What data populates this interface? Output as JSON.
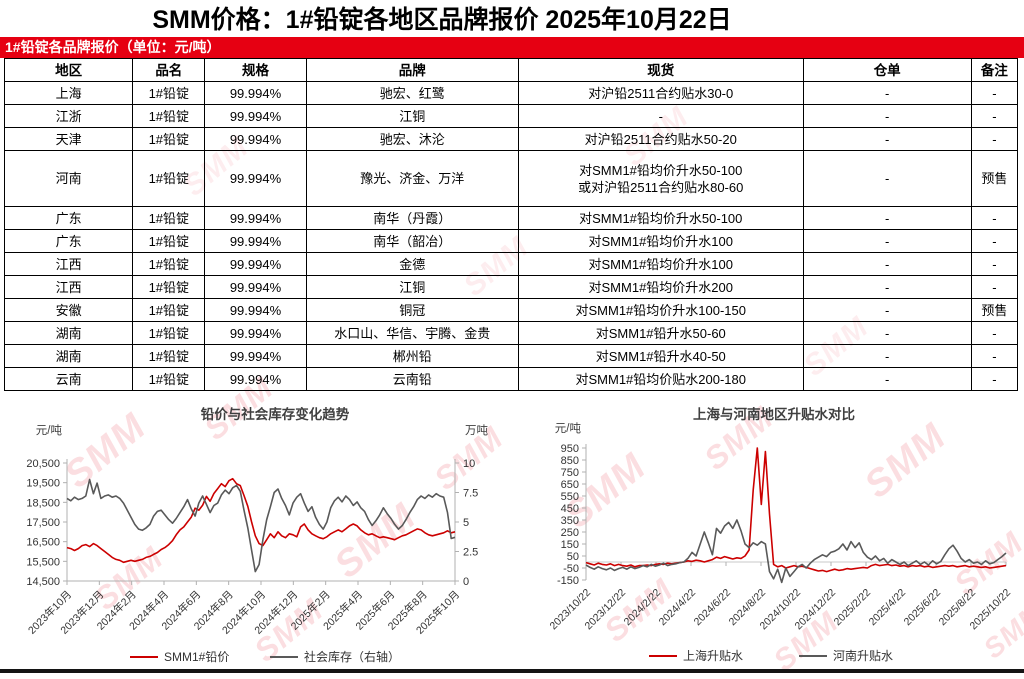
{
  "title": "SMM价格：1#铅锭各地区品牌报价 2025年10月22日",
  "banner": {
    "label": "1#铅锭各品牌报价（单位：元/吨）"
  },
  "watermark": "SMM",
  "colors": {
    "banner_red": "#e60012",
    "series_red": "#cc0000",
    "series_gray": "#595959",
    "watermark_red": "#de0018"
  },
  "table": {
    "headers": [
      "地区",
      "品名",
      "规格",
      "品牌",
      "现货",
      "仓单",
      "备注"
    ],
    "rows": [
      {
        "region": "上海",
        "product": "1#铅锭",
        "spec": "99.994%",
        "brand": "驰宏、红鹭",
        "spot": [
          "对沪铅2511合约贴水30-0"
        ],
        "warrant": "-",
        "note": "-"
      },
      {
        "region": "江浙",
        "product": "1#铅锭",
        "spec": "99.994%",
        "brand": "江铜",
        "spot": [
          "-"
        ],
        "warrant": "-",
        "note": "-"
      },
      {
        "region": "天津",
        "product": "1#铅锭",
        "spec": "99.994%",
        "brand": "驰宏、沐沦",
        "spot": [
          "对沪铅2511合约贴水50-20"
        ],
        "warrant": "-",
        "note": "-"
      },
      {
        "region": "河南",
        "product": "1#铅锭",
        "spec": "99.994%",
        "brand": "豫光、济金、万洋",
        "spot": [
          "对SMM1#铅均价升水50-100",
          "或对沪铅2511合约贴水80-60"
        ],
        "warrant": "-",
        "note": "预售"
      },
      {
        "region": "广东",
        "product": "1#铅锭",
        "spec": "99.994%",
        "brand": "南华（丹霞）",
        "spot": [
          "对SMM1#铅均价升水50-100"
        ],
        "warrant": "-",
        "note": "-"
      },
      {
        "region": "广东",
        "product": "1#铅锭",
        "spec": "99.994%",
        "brand": "南华（韶冶）",
        "spot": [
          "对SMM1#铅均价升水100"
        ],
        "warrant": "-",
        "note": "-"
      },
      {
        "region": "江西",
        "product": "1#铅锭",
        "spec": "99.994%",
        "brand": "金德",
        "spot": [
          "对SMM1#铅均价升水100"
        ],
        "warrant": "-",
        "note": "-"
      },
      {
        "region": "江西",
        "product": "1#铅锭",
        "spec": "99.994%",
        "brand": "江铜",
        "spot": [
          "对SMM1#铅均价升水200"
        ],
        "warrant": "-",
        "note": "-"
      },
      {
        "region": "安徽",
        "product": "1#铅锭",
        "spec": "99.994%",
        "brand": "铜冠",
        "spot": [
          "对SMM1#铅均价升水100-150"
        ],
        "warrant": "-",
        "note": "预售"
      },
      {
        "region": "湖南",
        "product": "1#铅锭",
        "spec": "99.994%",
        "brand": "水口山、华信、宇腾、金贵",
        "spot": [
          "对SMM1#铅升水50-60"
        ],
        "warrant": "-",
        "note": "-"
      },
      {
        "region": "湖南",
        "product": "1#铅锭",
        "spec": "99.994%",
        "brand": "郴州铅",
        "spot": [
          "对SMM1#铅升水40-50"
        ],
        "warrant": "-",
        "note": "-"
      },
      {
        "region": "云南",
        "product": "1#铅锭",
        "spec": "99.994%",
        "brand": "云南铅",
        "spot": [
          "对SMM1#铅均价贴水200-180"
        ],
        "warrant": "-",
        "note": "-"
      }
    ]
  },
  "chart_data": [
    {
      "type": "line",
      "title": "铅价与社会库存变化趋势",
      "left_axis": {
        "unit": "元/吨",
        "min": 14500,
        "max": 20500,
        "ticks": [
          "20,500",
          "19,500",
          "18,500",
          "17,500",
          "16,500",
          "15,500",
          "14,500"
        ]
      },
      "right_axis": {
        "unit": "万吨",
        "min": 0,
        "max": 10,
        "ticks": [
          "10",
          "7.5",
          "5",
          "2.5",
          "0"
        ]
      },
      "x_ticks": [
        "2023年10月",
        "2023年12月",
        "2024年2月",
        "2024年4月",
        "2024年6月",
        "2024年8月",
        "2024年10月",
        "2024年12月",
        "2025年2月",
        "2025年4月",
        "2025年6月",
        "2025年8月",
        "2025年10月"
      ],
      "legend": [
        {
          "name": "SMM1#铅价",
          "color": "#cc0000"
        },
        {
          "name": "社会库存（右轴）",
          "color": "#595959"
        }
      ],
      "series": [
        {
          "name": "SMM1#铅价",
          "axis": "left",
          "color": "#cc0000",
          "values": [
            16200,
            16150,
            16050,
            16150,
            16300,
            16350,
            16250,
            16400,
            16300,
            16150,
            16000,
            15850,
            15700,
            15600,
            15550,
            15450,
            15500,
            15550,
            15500,
            15550,
            15600,
            15700,
            15750,
            15850,
            15950,
            16100,
            16200,
            16350,
            16550,
            16850,
            17100,
            17250,
            17500,
            17750,
            18200,
            18100,
            18350,
            18800,
            18550,
            18950,
            19200,
            19450,
            19300,
            19600,
            19700,
            19450,
            19350,
            18850,
            18300,
            17500,
            16800,
            16400,
            16300,
            16600,
            16900,
            16700,
            17000,
            16800,
            16700,
            16900,
            16850,
            16750,
            17250,
            17400,
            17100,
            16900,
            16800,
            16700,
            16650,
            16750,
            16900,
            17000,
            17100,
            17000,
            17150,
            17300,
            17400,
            17300,
            17100,
            16950,
            16850,
            16900,
            16800,
            16700,
            16750,
            16700,
            16650,
            16600,
            16700,
            16800,
            16850,
            16950,
            17050,
            17150,
            17100,
            16950,
            16850,
            16800,
            16850,
            16900,
            16950,
            17050,
            16950,
            17000
          ]
        },
        {
          "name": "社会库存（右轴）",
          "axis": "right",
          "color": "#595959",
          "values": [
            7.0,
            6.8,
            7.1,
            6.9,
            7.0,
            7.2,
            8.6,
            7.4,
            8.3,
            7.0,
            7.2,
            7.3,
            7.1,
            7.2,
            7.0,
            6.6,
            6.0,
            5.4,
            4.8,
            4.4,
            4.3,
            4.5,
            4.8,
            5.5,
            5.9,
            6.0,
            5.6,
            5.2,
            4.9,
            5.3,
            5.8,
            6.3,
            6.9,
            6.1,
            5.5,
            6.6,
            7.2,
            6.5,
            5.8,
            6.4,
            6.6,
            7.3,
            7.7,
            7.4,
            7.9,
            8.1,
            7.6,
            6.0,
            4.5,
            2.6,
            0.8,
            1.4,
            3.5,
            5.2,
            6.3,
            7.5,
            7.8,
            7.0,
            6.4,
            5.6,
            6.6,
            7.1,
            7.4,
            6.6,
            5.9,
            6.3,
            5.4,
            4.8,
            4.4,
            5.0,
            6.2,
            6.8,
            7.1,
            6.7,
            7.2,
            6.9,
            6.4,
            6.7,
            6.2,
            5.9,
            5.2,
            4.7,
            5.1,
            5.6,
            6.2,
            5.7,
            5.3,
            4.8,
            4.4,
            4.7,
            5.2,
            5.8,
            6.3,
            6.9,
            7.2,
            7.0,
            7.3,
            7.1,
            7.4,
            7.2,
            7.1,
            5.8,
            3.6,
            3.7
          ]
        }
      ]
    },
    {
      "type": "line",
      "title": "上海与河南地区升贴水对比",
      "left_axis": {
        "unit": "元/吨",
        "min": -150,
        "max": 950,
        "ticks": [
          "950",
          "850",
          "750",
          "650",
          "550",
          "450",
          "350",
          "250",
          "150",
          "50",
          "-50",
          "-150"
        ]
      },
      "x_ticks": [
        "2023/10/22",
        "2023/12/22",
        "2024/2/22",
        "2024/4/22",
        "2024/6/22",
        "2024/8/22",
        "2024/10/22",
        "2024/12/22",
        "2025/2/22",
        "2025/4/22",
        "2025/6/22",
        "2025/8/22",
        "2025/10/22"
      ],
      "zero_line": true,
      "legend": [
        {
          "name": "上海升贴水",
          "color": "#cc0000"
        },
        {
          "name": "河南升贴水",
          "color": "#595959"
        }
      ],
      "series": [
        {
          "name": "上海升贴水",
          "axis": "left",
          "color": "#cc0000",
          "values": [
            -5,
            -15,
            -25,
            -10,
            -20,
            -25,
            -15,
            -30,
            -20,
            -30,
            -35,
            -25,
            -40,
            -30,
            -30,
            -25,
            -30,
            -20,
            -15,
            -20,
            -10,
            -15,
            -10,
            -5,
            0,
            10,
            5,
            15,
            10,
            0,
            10,
            20,
            40,
            30,
            45,
            35,
            25,
            35,
            30,
            50,
            100,
            600,
            950,
            480,
            920,
            400,
            -20,
            -40,
            -30,
            -50,
            -40,
            -30,
            -40,
            -35,
            -45,
            -55,
            -65,
            -75,
            -70,
            -80,
            -70,
            -60,
            -70,
            -65,
            -55,
            -60,
            -55,
            -50,
            -45,
            -50,
            -30,
            -20,
            -30,
            -25,
            -20,
            -30,
            -25,
            -35,
            -30,
            -40,
            -30,
            -35,
            -30,
            -40,
            -35,
            -45,
            -40,
            -35,
            -30,
            -35,
            -30,
            -40,
            -35,
            -30,
            -40,
            -35,
            -40,
            -45,
            -40,
            -50,
            -45,
            -40,
            -35,
            -30
          ]
        },
        {
          "name": "河南升贴水",
          "axis": "left",
          "color": "#595959",
          "values": [
            -25,
            -45,
            -60,
            -40,
            -55,
            -65,
            -50,
            -70,
            -55,
            -45,
            -60,
            -40,
            -55,
            -45,
            -30,
            -40,
            -20,
            -35,
            -25,
            -10,
            -30,
            -20,
            -15,
            -5,
            0,
            30,
            80,
            50,
            150,
            250,
            160,
            60,
            280,
            240,
            300,
            330,
            280,
            350,
            260,
            150,
            120,
            160,
            140,
            170,
            150,
            -80,
            -140,
            -60,
            -170,
            -50,
            -120,
            -80,
            -40,
            -20,
            -50,
            -10,
            20,
            40,
            60,
            45,
            80,
            90,
            110,
            150,
            100,
            170,
            120,
            160,
            80,
            40,
            20,
            50,
            10,
            30,
            -10,
            20,
            0,
            -20,
            0,
            -30,
            -10,
            10,
            -20,
            0,
            -25,
            10,
            -15,
            5,
            60,
            110,
            140,
            90,
            30,
            0,
            20,
            -10,
            0,
            -20,
            10,
            -15,
            -5,
            20,
            45,
            75
          ]
        }
      ]
    }
  ]
}
